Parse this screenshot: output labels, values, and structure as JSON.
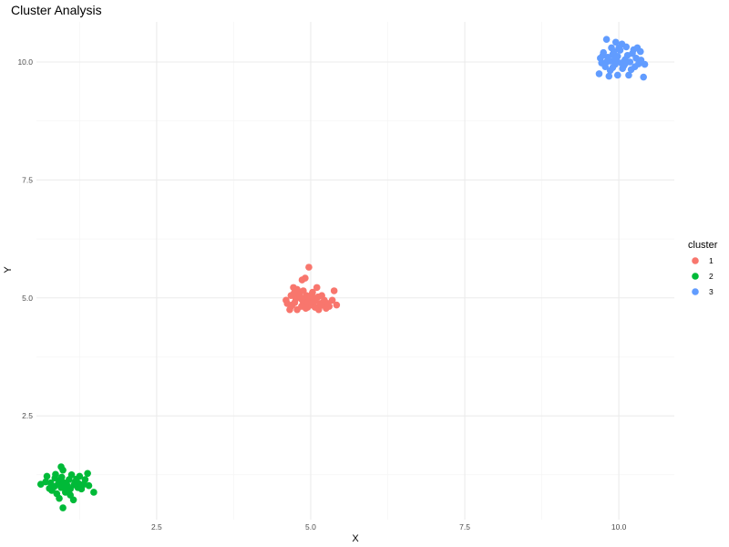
{
  "chart_data": {
    "type": "scatter",
    "title": "Cluster Analysis",
    "xlabel": "X",
    "ylabel": "Y",
    "xlim": [
      0.55,
      10.9
    ],
    "ylim": [
      0.3,
      10.85
    ],
    "x_ticks": [
      2.5,
      5.0,
      7.5,
      10.0
    ],
    "y_ticks": [
      2.5,
      5.0,
      7.5,
      10.0
    ],
    "x_tick_labels": [
      "2.5",
      "5.0",
      "7.5",
      "10.0"
    ],
    "y_tick_labels": [
      "2.5",
      "5.0",
      "7.5",
      "10.0"
    ],
    "grid": true,
    "legend": {
      "title": "cluster",
      "placement": "right",
      "entries": [
        {
          "label": "1",
          "color": "#F8766D"
        },
        {
          "label": "2",
          "color": "#00BA38"
        },
        {
          "label": "3",
          "color": "#619CFF"
        }
      ]
    },
    "series": [
      {
        "name": "1",
        "color": "#F8766D",
        "points": [
          [
            4.97,
            5.65
          ],
          [
            4.91,
            5.42
          ],
          [
            4.86,
            5.38
          ],
          [
            4.72,
            5.22
          ],
          [
            4.88,
            5.15
          ],
          [
            5.1,
            5.22
          ],
          [
            4.8,
            5.1
          ],
          [
            5.38,
            5.15
          ],
          [
            4.68,
            5.05
          ],
          [
            4.93,
            5.05
          ],
          [
            5.02,
            5.08
          ],
          [
            5.18,
            5.05
          ],
          [
            4.6,
            4.95
          ],
          [
            4.76,
            4.98
          ],
          [
            4.84,
            5.0
          ],
          [
            4.98,
            4.95
          ],
          [
            5.08,
            4.98
          ],
          [
            5.22,
            4.95
          ],
          [
            4.7,
            4.85
          ],
          [
            4.88,
            4.88
          ],
          [
            5.0,
            4.85
          ],
          [
            5.3,
            4.82
          ],
          [
            5.42,
            4.85
          ],
          [
            4.66,
            4.75
          ],
          [
            4.78,
            4.75
          ],
          [
            5.13,
            4.75
          ],
          [
            4.95,
            4.8
          ],
          [
            5.05,
            4.92
          ],
          [
            4.82,
            5.05
          ],
          [
            4.74,
            4.9
          ],
          [
            5.15,
            4.88
          ],
          [
            4.9,
            4.92
          ],
          [
            5.25,
            4.78
          ],
          [
            4.85,
            4.82
          ],
          [
            5.03,
            5.12
          ],
          [
            4.62,
            4.88
          ],
          [
            5.35,
            4.95
          ],
          [
            4.95,
            5.0
          ],
          [
            5.2,
            4.9
          ],
          [
            4.78,
            5.18
          ],
          [
            5.07,
            4.8
          ],
          [
            4.92,
            4.78
          ],
          [
            4.68,
            4.82
          ],
          [
            5.12,
            5.02
          ],
          [
            4.86,
            4.96
          ],
          [
            5.28,
            4.88
          ],
          [
            4.99,
            5.02
          ],
          [
            4.73,
            5.1
          ],
          [
            5.17,
            4.84
          ],
          [
            4.95,
            4.9
          ]
        ]
      },
      {
        "name": "2",
        "color": "#00BA38",
        "points": [
          [
            0.95,
            1.42
          ],
          [
            0.98,
            1.35
          ],
          [
            0.72,
            1.22
          ],
          [
            0.85,
            1.18
          ],
          [
            1.12,
            1.25
          ],
          [
            1.25,
            1.22
          ],
          [
            1.38,
            1.28
          ],
          [
            0.62,
            1.05
          ],
          [
            0.78,
            1.08
          ],
          [
            0.92,
            1.12
          ],
          [
            1.05,
            1.02
          ],
          [
            1.18,
            1.1
          ],
          [
            1.32,
            1.05
          ],
          [
            1.4,
            1.02
          ],
          [
            0.8,
            0.92
          ],
          [
            0.95,
            0.98
          ],
          [
            1.1,
            0.95
          ],
          [
            1.22,
            0.98
          ],
          [
            0.88,
            0.85
          ],
          [
            1.02,
            0.88
          ],
          [
            1.48,
            0.88
          ],
          [
            0.92,
            0.75
          ],
          [
            1.15,
            0.72
          ],
          [
            0.98,
            0.55
          ],
          [
            1.08,
            1.15
          ],
          [
            0.9,
            1.05
          ],
          [
            1.28,
            0.95
          ],
          [
            0.84,
            1.0
          ],
          [
            1.0,
            1.08
          ],
          [
            1.16,
            1.04
          ],
          [
            0.76,
            0.96
          ],
          [
            1.34,
            1.15
          ],
          [
            1.05,
            0.92
          ],
          [
            0.96,
            1.2
          ],
          [
            1.2,
            1.16
          ],
          [
            0.7,
            1.1
          ],
          [
            1.1,
            0.82
          ],
          [
            0.86,
            1.26
          ],
          [
            1.02,
            1.0
          ],
          [
            1.24,
            1.06
          ]
        ]
      },
      {
        "name": "3",
        "color": "#619CFF",
        "points": [
          [
            9.8,
            10.48
          ],
          [
            9.95,
            10.42
          ],
          [
            10.05,
            10.38
          ],
          [
            9.88,
            10.3
          ],
          [
            10.12,
            10.32
          ],
          [
            10.3,
            10.3
          ],
          [
            9.75,
            10.2
          ],
          [
            9.92,
            10.22
          ],
          [
            10.02,
            10.25
          ],
          [
            10.22,
            10.18
          ],
          [
            10.35,
            10.22
          ],
          [
            9.7,
            10.08
          ],
          [
            9.82,
            10.1
          ],
          [
            9.98,
            10.12
          ],
          [
            10.1,
            10.05
          ],
          [
            10.28,
            10.08
          ],
          [
            9.72,
            9.98
          ],
          [
            9.86,
            10.02
          ],
          [
            9.94,
            9.95
          ],
          [
            10.04,
            9.98
          ],
          [
            10.18,
            10.0
          ],
          [
            10.32,
            9.96
          ],
          [
            10.42,
            9.95
          ],
          [
            9.78,
            9.9
          ],
          [
            9.9,
            9.88
          ],
          [
            10.08,
            9.92
          ],
          [
            10.26,
            9.9
          ],
          [
            9.68,
            9.75
          ],
          [
            9.84,
            9.7
          ],
          [
            9.98,
            9.72
          ],
          [
            10.16,
            9.72
          ],
          [
            10.4,
            9.68
          ],
          [
            9.96,
            10.04
          ],
          [
            10.14,
            10.14
          ],
          [
            9.8,
            10.0
          ],
          [
            10.2,
            9.84
          ],
          [
            9.9,
            10.16
          ],
          [
            10.06,
            9.86
          ],
          [
            10.36,
            10.04
          ],
          [
            9.74,
            10.14
          ],
          [
            10.0,
            10.3
          ],
          [
            9.86,
            9.82
          ],
          [
            10.24,
            10.26
          ],
          [
            10.1,
            9.96
          ],
          [
            9.94,
            10.08
          ]
        ]
      }
    ]
  }
}
